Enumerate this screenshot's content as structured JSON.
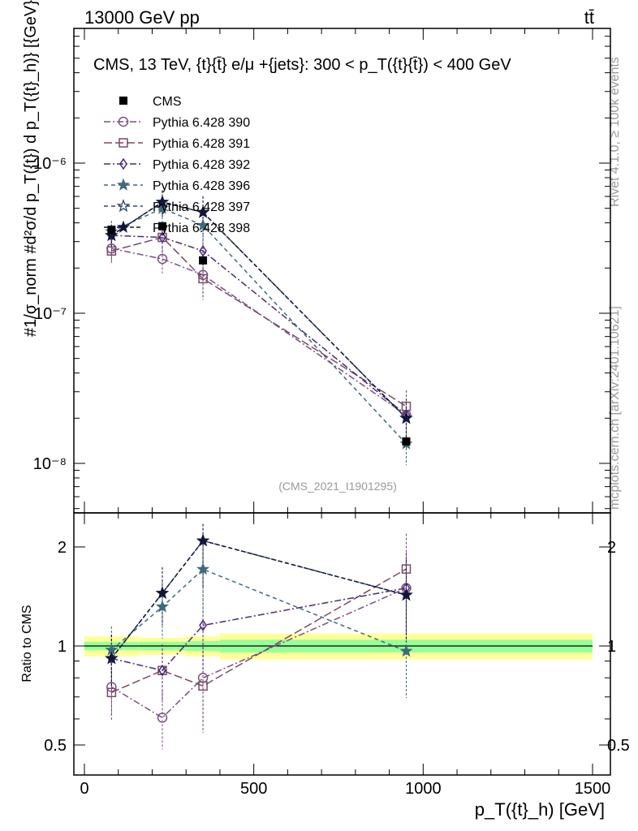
{
  "header": {
    "left": "13000 GeV pp",
    "right": "tt̄"
  },
  "side_labels": {
    "rivet": "Rivet 4.1.0, ≥ 100k events",
    "mcplots": "mcplots.cern.ch [arXiv:2401.10621]"
  },
  "chart_data": {
    "type": "scatter",
    "title": "CMS, 13 TeV, {t}{t̄} e/μ +{jets}: 300 <  p_T({t}{t̄}) < 400 GeV",
    "watermark": "(CMS_2021_I1901295)",
    "xlabel": "p_T({t}_h) [GeV]",
    "ylabel": "#1/σ_norm #d²σ/d p_T({t}) d p_T({t}_h)} [{GeV}^-2]",
    "ratio_ylabel": "Ratio to CMS",
    "xlim": [
      -20,
      1500
    ],
    "ylim": [
      4.5e-09,
      1e-05
    ],
    "ratio_ylim": [
      0.4,
      2.4
    ],
    "x_ticks": [
      0,
      500,
      1000,
      1500
    ],
    "x_tick_labels": [
      "0",
      "500",
      "1000",
      "1500"
    ],
    "y_ticks": [
      1e-08,
      1e-07,
      1e-06
    ],
    "y_tick_labels": [
      "10⁻⁸",
      "10⁻⁷",
      "10⁻⁶"
    ],
    "ratio_ticks": [
      0.5,
      1,
      2
    ],
    "ratio_tick_labels": [
      "0.5",
      "1",
      "2"
    ],
    "bins": [
      [
        0,
        160
      ],
      [
        160,
        300
      ],
      [
        300,
        400
      ],
      [
        400,
        1500
      ]
    ],
    "x": [
      80,
      230,
      350,
      950
    ],
    "data": {
      "name": "CMS",
      "values": [
        3.6e-07,
        3.8e-07,
        2.25e-07,
        1.4e-08
      ],
      "rel_err_stat": [
        0.03,
        0.03,
        0.035,
        0.045
      ],
      "rel_err_total": [
        0.07,
        0.06,
        0.07,
        0.09
      ]
    },
    "series": [
      {
        "name": "Pythia 6.428 390",
        "color": "#7b4f86",
        "marker": "open-circle",
        "dash": "8,3,2,3",
        "values": [
          2.7e-07,
          2.3e-07,
          1.8e-07,
          2.1e-08
        ],
        "rel_err": [
          0.18,
          0.2,
          0.28,
          0.28
        ]
      },
      {
        "name": "Pythia 6.428 391",
        "color": "#7a4a66",
        "marker": "open-square",
        "dash": "10,4",
        "values": [
          2.6e-07,
          3.2e-07,
          1.7e-07,
          2.4e-08
        ],
        "rel_err": [
          0.18,
          0.2,
          0.28,
          0.28
        ]
      },
      {
        "name": "Pythia 6.428 392",
        "color": "#4a2a7a",
        "marker": "open-diamond",
        "dash": "8,3,2,3",
        "values": [
          3.3e-07,
          3.2e-07,
          2.6e-07,
          2.1e-08
        ],
        "rel_err": [
          0.18,
          0.2,
          0.28,
          0.28
        ]
      },
      {
        "name": "Pythia 6.428 396",
        "color": "#3e6a7c",
        "marker": "star",
        "dash": "5,4",
        "values": [
          3.5e-07,
          5e-07,
          3.85e-07,
          1.35e-08
        ],
        "rel_err": [
          0.18,
          0.2,
          0.28,
          0.28
        ]
      },
      {
        "name": "Pythia 6.428 397",
        "color": "#2c4868",
        "marker": "open-star",
        "dash": "5,4",
        "values": [
          3.3e-07,
          5.5e-07,
          4.7e-07,
          2e-08
        ],
        "rel_err": [
          0.18,
          0.2,
          0.28,
          0.28
        ]
      },
      {
        "name": "Pythia 6.428 398",
        "color": "#15153a",
        "marker": "star",
        "dash": "5,3",
        "values": [
          3.3e-07,
          5.5e-07,
          4.7e-07,
          2e-08
        ],
        "rel_err": [
          0.18,
          0.2,
          0.28,
          0.28
        ]
      }
    ]
  }
}
